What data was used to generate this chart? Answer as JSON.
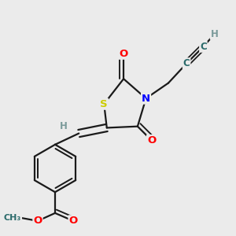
{
  "background_color": "#ebebeb",
  "atom_colors": {
    "S": "#cccc00",
    "N": "#0000ff",
    "O": "#ff0000",
    "C": "#2a6a6a",
    "H": "#7a9a9a"
  },
  "bond_color": "#1a1a1a",
  "bond_width": 1.6,
  "font_size_atom": 9,
  "fig_size": [
    3.0,
    3.0
  ],
  "dpi": 100
}
